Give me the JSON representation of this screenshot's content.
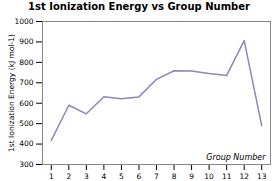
{
  "chart_data": {
    "type": "line",
    "title": "1st Ionization Energy vs Group Number",
    "xlabel": "Group Number",
    "ylabel": "1st Ionization Energy (kJ mol-1)",
    "x": [
      1,
      2,
      3,
      4,
      5,
      6,
      7,
      8,
      9,
      10,
      11,
      12,
      13
    ],
    "values": [
      418,
      590,
      548,
      632,
      622,
      631,
      717,
      759,
      758,
      745,
      736,
      906,
      490
    ],
    "color": "#8888bb",
    "xlim": [
      0.5,
      13.5
    ],
    "ylim": [
      300,
      1000
    ],
    "xticks": [
      1,
      2,
      3,
      4,
      5,
      6,
      7,
      8,
      9,
      10,
      11,
      12,
      13
    ],
    "yticks": [
      300,
      400,
      500,
      600,
      700,
      800,
      900,
      1000
    ],
    "grid": false
  }
}
